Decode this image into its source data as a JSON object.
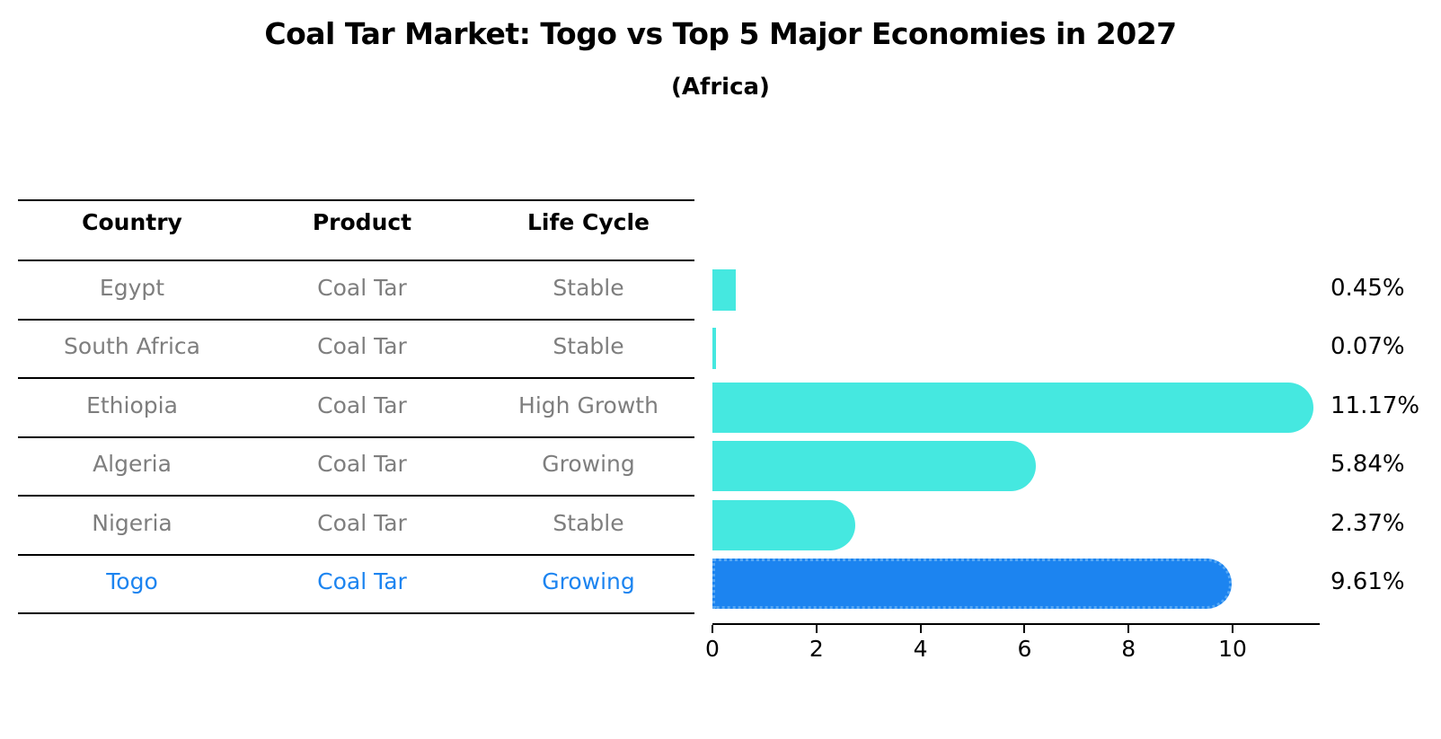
{
  "title": "Coal Tar Market: Togo vs Top 5 Major Economies in 2027",
  "subtitle": "(Africa)",
  "colors": {
    "bar_default": "#45e8e0",
    "bar_highlight": "#1c84f0",
    "table_text": "#7e7e7e",
    "highlight_text": "#1c84f0",
    "text": "#000000"
  },
  "table": {
    "headers": [
      "Country",
      "Product",
      "Life Cycle"
    ],
    "rows": [
      {
        "country": "Egypt",
        "product": "Coal Tar",
        "life_cycle": "Stable",
        "value": 0.45,
        "label": "0.45%",
        "highlight": false
      },
      {
        "country": "South Africa",
        "product": "Coal Tar",
        "life_cycle": "Stable",
        "value": 0.07,
        "label": "0.07%",
        "highlight": false
      },
      {
        "country": "Ethiopia",
        "product": "Coal Tar",
        "life_cycle": "High Growth",
        "value": 11.17,
        "label": "11.17%",
        "highlight": false
      },
      {
        "country": "Algeria",
        "product": "Coal Tar",
        "life_cycle": "Growing",
        "value": 5.84,
        "label": "5.84%",
        "highlight": false
      },
      {
        "country": "Nigeria",
        "product": "Coal Tar",
        "life_cycle": "Stable",
        "value": 2.37,
        "label": "2.37%",
        "highlight": false
      },
      {
        "country": "Togo",
        "product": "Coal Tar",
        "life_cycle": "Growing",
        "value": 9.61,
        "label": "9.61%",
        "highlight": true
      }
    ]
  },
  "chart_data": {
    "type": "bar",
    "orientation": "horizontal",
    "title": "Coal Tar Market: Togo vs Top 5 Major Economies in 2027 (Africa)",
    "categories": [
      "Egypt",
      "South Africa",
      "Ethiopia",
      "Algeria",
      "Nigeria",
      "Togo"
    ],
    "values": [
      0.45,
      0.07,
      11.17,
      5.84,
      2.37,
      9.61
    ],
    "value_labels": [
      "0.45%",
      "0.07%",
      "11.17%",
      "5.84%",
      "2.37%",
      "9.61%"
    ],
    "highlight_category": "Togo",
    "xlabel": "",
    "ylabel": "",
    "xticks": [
      0,
      2,
      4,
      6,
      8,
      10
    ],
    "xtick_labels": [
      "0",
      "2",
      "4",
      "6",
      "8",
      "10"
    ],
    "xlim": [
      0,
      11.66
    ],
    "grid": false,
    "legend": false
  }
}
